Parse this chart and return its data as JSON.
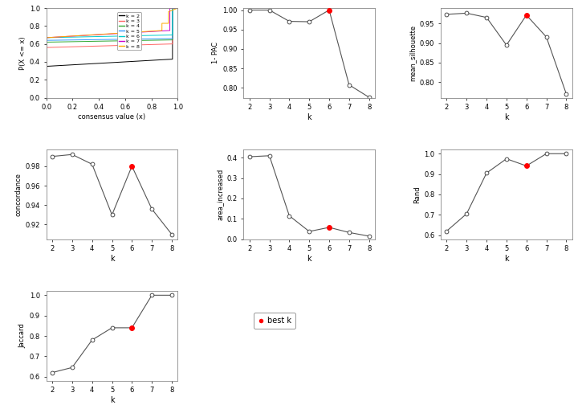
{
  "k_values": [
    2,
    3,
    4,
    5,
    6,
    7,
    8
  ],
  "best_k": 6,
  "pac_1minus": [
    1.0,
    1.0,
    0.971,
    0.97,
    1.0,
    0.808,
    0.776
  ],
  "mean_silhouette": [
    0.974,
    0.977,
    0.966,
    0.895,
    0.972,
    0.916,
    0.77
  ],
  "concordance": [
    0.99,
    0.992,
    0.982,
    0.93,
    0.98,
    0.936,
    0.91
  ],
  "area_increased": [
    0.405,
    0.41,
    0.115,
    0.038,
    0.058,
    0.033,
    0.015
  ],
  "rand": [
    0.62,
    0.705,
    0.905,
    0.975,
    0.94,
    1.0,
    1.0
  ],
  "jaccard": [
    0.62,
    0.645,
    0.78,
    0.84,
    0.84,
    1.0,
    1.0
  ],
  "best_k_color": "#FF0000",
  "cdf_colors": {
    "k2": "#000000",
    "k3": "#FF6666",
    "k4": "#33AA33",
    "k5": "#3399FF",
    "k6": "#00CCCC",
    "k7": "#CC00CC",
    "k8": "#FFAA00"
  },
  "bg_color": "#FFFFFF"
}
